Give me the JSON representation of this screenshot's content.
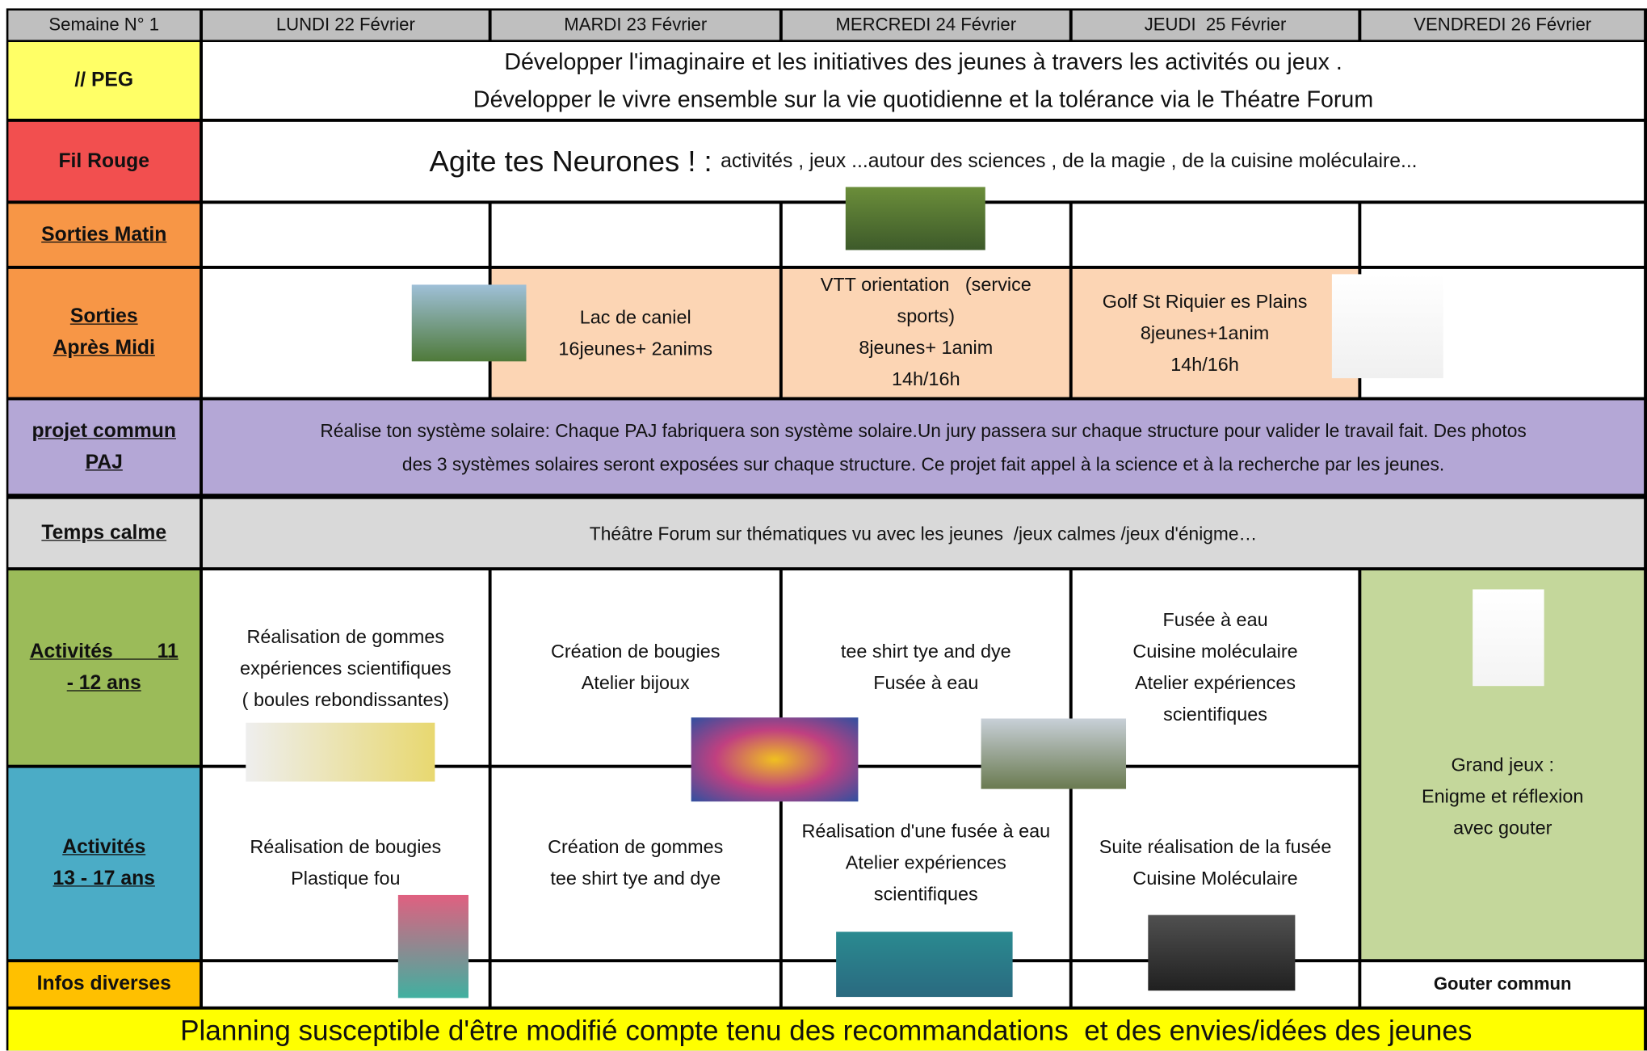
{
  "header": [
    "Semaine N° 1",
    "LUNDI 22 Février",
    "MARDI 23 Février",
    "MERCREDI 24 Février",
    "JEUDI  25 Février",
    "VENDREDI 26 Février"
  ],
  "peg": {
    "label": "// PEG",
    "lines": [
      "Développer l'imaginaire et les initiatives des jeunes à travers les activités ou jeux .",
      "Développer le vivre ensemble sur la vie quotidienne et la tolérance via le Théatre Forum"
    ]
  },
  "fil_rouge": {
    "label": "Fil Rouge",
    "title": "Agite tes Neurones ! :",
    "text": "activités , jeux ...autour des sciences , de la magie , de la cuisine moléculaire..."
  },
  "sorties_matin": {
    "label": "Sorties Matin"
  },
  "sorties_apres_midi": {
    "label": [
      "Sorties",
      "Après Midi"
    ],
    "mardi": [
      "Lac de caniel",
      "16jeunes+ 2anims"
    ],
    "mercredi": [
      "VTT orientation   (service",
      "sports)",
      "8jeunes+ 1anim",
      "14h/16h"
    ],
    "jeudi": [
      "Golf St Riquier es Plains",
      "8jeunes+1anim",
      "14h/16h"
    ]
  },
  "projet_commun": {
    "label": [
      "projet commun",
      "PAJ"
    ],
    "lines": [
      "Réalise ton système solaire: Chaque PAJ fabriquera son système solaire.Un jury passera sur chaque structure pour valider le travail fait. Des photos",
      "des 3 systèmes solaires seront exposées sur chaque structure. Ce projet fait appel à la science et à la recherche par les jeunes."
    ]
  },
  "temps_calme": {
    "label": "Temps calme",
    "text": "Théâtre Forum sur thématiques vu avec les jeunes  /jeux calmes /jeux d'énigme…"
  },
  "activites_11_12": {
    "label": [
      "Activités        11",
      "- 12 ans"
    ],
    "lundi": [
      "Réalisation de gommes",
      "expériences scientifiques",
      "( boules rebondissantes)"
    ],
    "mardi": [
      "Création de bougies",
      "Atelier bijoux"
    ],
    "mercredi": [
      "tee shirt tye and dye",
      "Fusée à eau"
    ],
    "jeudi": [
      "Fusée à eau",
      "Cuisine moléculaire",
      "Atelier expériences",
      "scientifiques"
    ]
  },
  "vendredi_activites": [
    "Grand jeux :",
    "Enigme et réflexion",
    "avec gouter"
  ],
  "activites_13_17": {
    "label": [
      "Activités",
      "13 - 17 ans"
    ],
    "lundi": [
      "Réalisation de bougies",
      "Plastique fou"
    ],
    "mardi": [
      "Création de gommes",
      "tee shirt tye and dye"
    ],
    "mercredi": [
      "Réalisation d'une fusée à eau",
      "Atelier expériences",
      "scientifiques"
    ],
    "jeudi": [
      "Suite réalisation de la fusée",
      "Cuisine Moléculaire"
    ]
  },
  "infos_diverses": {
    "label": "Infos diverses",
    "vendredi": "Gouter commun"
  },
  "footer": "Planning susceptible d'être modifié compte tenu des recommandations  et des envies/idées des jeunes"
}
